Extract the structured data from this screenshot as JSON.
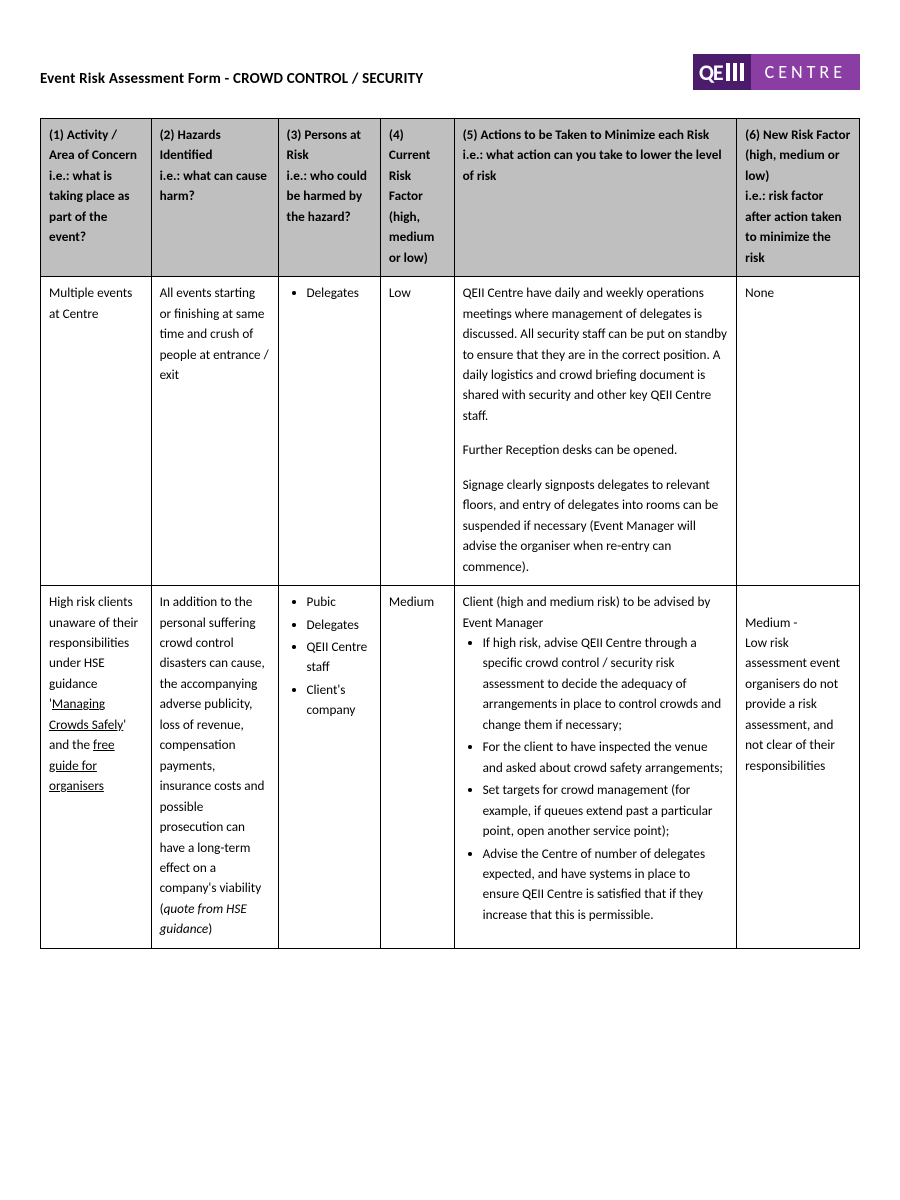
{
  "document": {
    "title": "Event Risk Assessment Form - CROWD CONTROL  / SECURITY",
    "logo": {
      "brand_left": "QE",
      "brand_right": "CENTRE"
    }
  },
  "table": {
    "headers": [
      "(1) Activity / Area of Concern\ni.e.: what is taking place as part of the event?",
      "(2) Hazards Identified\ni.e.: what can cause harm?",
      "(3) Persons at Risk\ni.e.: who could be harmed by the hazard?",
      "(4) Current Risk Factor (high, medium or low)",
      "(5) Actions to be Taken to Minimize each Risk i.e.: what action can you take to lower the level of risk",
      "(6) New Risk Factor (high, medium or low)\ni.e.: risk factor after action taken to minimize the risk"
    ],
    "column_widths_pct": [
      13.5,
      15.5,
      12.5,
      9,
      34.5,
      15
    ],
    "header_bg": "#bfbfbf",
    "border_color": "#000000",
    "font_size_pt": 10,
    "rows": [
      {
        "activity_html": "Multiple events at Centre",
        "hazards_html": "All events starting or finishing at same time and crush of people at entrance / exit",
        "persons_list": [
          "Delegates"
        ],
        "risk_factor": "Low",
        "actions_html": "<p class=\"cell-p\">QEII Centre have daily and weekly operations meetings where management of delegates is discussed. All security staff can be put on standby to ensure that they are in the correct position. A daily logistics and crowd briefing document is shared with security and other key QEII Centre staff.</p><p class=\"cell-p\">Further Reception desks can be opened.</p><p class=\"cell-p\">Signage clearly signposts delegates to relevant floors, and entry of delegates into rooms can be suspended if necessary (Event Manager will advise the organiser when re-entry can commence).</p>",
        "new_risk_html": "None"
      },
      {
        "activity_html": "High risk clients unaware of their responsibilities under HSE guidance '<span class=\"u\">Managing Crowds Safely</span>' and the <span class=\"u\">free guide for organisers</span>",
        "hazards_html": "In addition to the personal suffering crowd control disasters can cause, the accompanying adverse publicity, loss of revenue, compensation payments, insurance costs and possible prosecution can have a long-term effect on a company's viability<br>(<span class=\"i\">quote from HSE guidance</span>)",
        "persons_list": [
          "Pubic",
          "Delegates",
          "QEII Centre staff",
          "Client's company"
        ],
        "risk_factor": "Medium",
        "actions_html": "Client (high and medium risk) to be advised by Event Manager<ul class=\"cell-list\"><li>If high risk, advise QEII Centre through a specific crowd control / security risk assessment to decide the adequacy of arrangements in place to control crowds and change them if necessary;</li><li>For the client to have inspected the venue and asked about crowd safety arrangements;</li><li>Set targets for crowd management (for example, if queues extend past a particular point, open another service point);</li><li>Advise the Centre of number of delegates expected, and have systems in place to ensure QEII Centre is satisfied that if they increase that this is permissible.</li></ul>",
        "new_risk_html": "<br>Medium -<br>Low risk assessment event organisers do not provide a risk assessment, and not clear of their responsibilities"
      }
    ]
  }
}
